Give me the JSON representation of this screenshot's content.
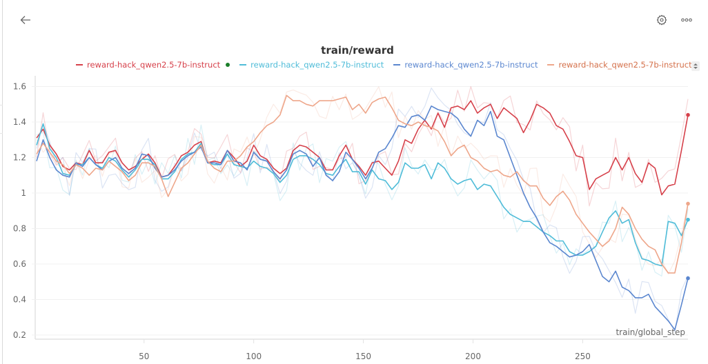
{
  "header": {
    "back_icon": "arrow-left-icon",
    "settings_icon": "gear-icon",
    "more_icon": "ellipsis-icon"
  },
  "chart_data": {
    "type": "line",
    "title": "train/reward",
    "xlabel": "train/global_step",
    "ylabel": "",
    "xlim": [
      1,
      298
    ],
    "ylim": [
      0.18,
      1.66
    ],
    "grid": true,
    "legend_placement": "top",
    "x_ticks": [
      "50",
      "100",
      "150",
      "200",
      "250"
    ],
    "x_tick_values": [
      50,
      100,
      150,
      200,
      250
    ],
    "y_ticks": [
      "1.6",
      "1.4",
      "1.2",
      "1",
      "0.8",
      "0.6",
      "0.4",
      "0.2"
    ],
    "y_tick_values": [
      1.6,
      1.4,
      1.2,
      1.0,
      0.8,
      0.6,
      0.4,
      0.2
    ],
    "x": [
      1,
      4,
      7,
      10,
      13,
      16,
      19,
      22,
      25,
      28,
      31,
      34,
      37,
      40,
      43,
      46,
      49,
      52,
      55,
      58,
      61,
      64,
      67,
      70,
      73,
      76,
      79,
      82,
      85,
      88,
      91,
      94,
      97,
      100,
      103,
      106,
      109,
      112,
      115,
      118,
      121,
      124,
      127,
      130,
      133,
      136,
      139,
      142,
      145,
      148,
      151,
      154,
      157,
      160,
      163,
      166,
      169,
      172,
      175,
      178,
      181,
      184,
      187,
      190,
      193,
      196,
      199,
      202,
      205,
      208,
      211,
      214,
      217,
      220,
      223,
      226,
      229,
      232,
      235,
      238,
      241,
      244,
      247,
      250,
      253,
      256,
      259,
      262,
      265,
      268,
      271,
      274,
      277,
      280,
      283,
      286,
      289,
      292,
      295,
      298
    ],
    "series": [
      {
        "name": "reward-hack_qwen2.5-7b-instruct",
        "color": "#d6404a",
        "active_marker": true,
        "marker_color": "#1b7f2a",
        "values": [
          1.31,
          1.36,
          1.27,
          1.22,
          1.15,
          1.13,
          1.17,
          1.16,
          1.24,
          1.17,
          1.17,
          1.23,
          1.24,
          1.17,
          1.13,
          1.15,
          1.19,
          1.22,
          1.17,
          1.09,
          1.1,
          1.15,
          1.21,
          1.23,
          1.27,
          1.29,
          1.17,
          1.18,
          1.17,
          1.24,
          1.2,
          1.15,
          1.18,
          1.27,
          1.21,
          1.19,
          1.14,
          1.11,
          1.14,
          1.24,
          1.27,
          1.26,
          1.23,
          1.2,
          1.13,
          1.13,
          1.21,
          1.27,
          1.19,
          1.15,
          1.1,
          1.17,
          1.18,
          1.14,
          1.1,
          1.18,
          1.3,
          1.28,
          1.36,
          1.41,
          1.36,
          1.45,
          1.37,
          1.48,
          1.49,
          1.47,
          1.52,
          1.45,
          1.48,
          1.5,
          1.42,
          1.48,
          1.45,
          1.42,
          1.34,
          1.41,
          1.5,
          1.48,
          1.45,
          1.38,
          1.36,
          1.29,
          1.21,
          1.2,
          1.02,
          1.08,
          1.1,
          1.12,
          1.2,
          1.13,
          1.2,
          1.11,
          1.06,
          1.17,
          1.14,
          0.99,
          1.04,
          1.05,
          1.24,
          1.44
        ]
      },
      {
        "name": "reward-hack_qwen2.5-7b-instruct",
        "color": "#4fbcd8",
        "active_marker": false,
        "values": [
          1.27,
          1.39,
          1.25,
          1.2,
          1.11,
          1.1,
          1.16,
          1.16,
          1.2,
          1.16,
          1.14,
          1.2,
          1.18,
          1.13,
          1.09,
          1.13,
          1.19,
          1.19,
          1.16,
          1.08,
          1.08,
          1.12,
          1.19,
          1.22,
          1.23,
          1.28,
          1.17,
          1.16,
          1.16,
          1.22,
          1.16,
          1.15,
          1.14,
          1.18,
          1.15,
          1.14,
          1.11,
          1.06,
          1.1,
          1.19,
          1.21,
          1.21,
          1.19,
          1.16,
          1.11,
          1.1,
          1.15,
          1.19,
          1.12,
          1.12,
          1.05,
          1.13,
          1.08,
          1.07,
          1.02,
          1.06,
          1.17,
          1.14,
          1.14,
          1.16,
          1.08,
          1.17,
          1.14,
          1.08,
          1.05,
          1.07,
          1.08,
          1.02,
          1.05,
          1.04,
          0.98,
          0.92,
          0.88,
          0.86,
          0.84,
          0.84,
          0.81,
          0.78,
          0.76,
          0.73,
          0.73,
          0.67,
          0.65,
          0.65,
          0.67,
          0.7,
          0.78,
          0.86,
          0.9,
          0.83,
          0.85,
          0.72,
          0.63,
          0.62,
          0.6,
          0.59,
          0.84,
          0.83,
          0.76,
          0.85
        ]
      },
      {
        "name": "reward-hack_qwen2.5-7b-instruct",
        "color": "#5a86cf",
        "active_marker": false,
        "values": [
          1.18,
          1.3,
          1.2,
          1.13,
          1.1,
          1.09,
          1.17,
          1.15,
          1.2,
          1.16,
          1.13,
          1.18,
          1.2,
          1.14,
          1.11,
          1.14,
          1.22,
          1.21,
          1.14,
          1.09,
          1.1,
          1.13,
          1.18,
          1.21,
          1.23,
          1.26,
          1.17,
          1.17,
          1.16,
          1.24,
          1.18,
          1.17,
          1.13,
          1.23,
          1.19,
          1.18,
          1.12,
          1.08,
          1.13,
          1.22,
          1.24,
          1.22,
          1.15,
          1.2,
          1.1,
          1.07,
          1.12,
          1.23,
          1.19,
          1.14,
          1.08,
          1.14,
          1.23,
          1.25,
          1.31,
          1.38,
          1.37,
          1.43,
          1.44,
          1.41,
          1.49,
          1.47,
          1.46,
          1.45,
          1.42,
          1.36,
          1.32,
          1.41,
          1.38,
          1.46,
          1.32,
          1.3,
          1.2,
          1.1,
          1.0,
          0.92,
          0.86,
          0.78,
          0.72,
          0.7,
          0.67,
          0.64,
          0.65,
          0.67,
          0.71,
          0.62,
          0.53,
          0.5,
          0.56,
          0.47,
          0.45,
          0.41,
          0.41,
          0.43,
          0.36,
          0.32,
          0.28,
          0.23,
          0.37,
          0.52
        ]
      },
      {
        "name": "reward-hack_qwen2.5-7b-instruct",
        "color": "#eea68a",
        "active_marker": false,
        "values": [
          1.22,
          1.28,
          1.23,
          1.18,
          1.16,
          1.11,
          1.16,
          1.14,
          1.1,
          1.14,
          1.13,
          1.18,
          1.15,
          1.12,
          1.07,
          1.1,
          1.17,
          1.17,
          1.15,
          1.08,
          0.98,
          1.06,
          1.14,
          1.17,
          1.22,
          1.27,
          1.18,
          1.14,
          1.12,
          1.18,
          1.18,
          1.21,
          1.26,
          1.29,
          1.34,
          1.38,
          1.4,
          1.44,
          1.55,
          1.52,
          1.52,
          1.5,
          1.49,
          1.52,
          1.52,
          1.52,
          1.53,
          1.54,
          1.47,
          1.5,
          1.45,
          1.51,
          1.53,
          1.54,
          1.48,
          1.41,
          1.39,
          1.38,
          1.4,
          1.38,
          1.37,
          1.35,
          1.29,
          1.21,
          1.25,
          1.27,
          1.2,
          1.18,
          1.14,
          1.12,
          1.13,
          1.1,
          1.09,
          1.12,
          1.07,
          1.04,
          1.04,
          0.97,
          0.93,
          0.98,
          1.01,
          0.96,
          0.88,
          0.83,
          0.78,
          0.74,
          0.7,
          0.73,
          0.8,
          0.92,
          0.88,
          0.8,
          0.74,
          0.7,
          0.68,
          0.6,
          0.55,
          0.55,
          0.72,
          0.94
        ]
      }
    ]
  }
}
